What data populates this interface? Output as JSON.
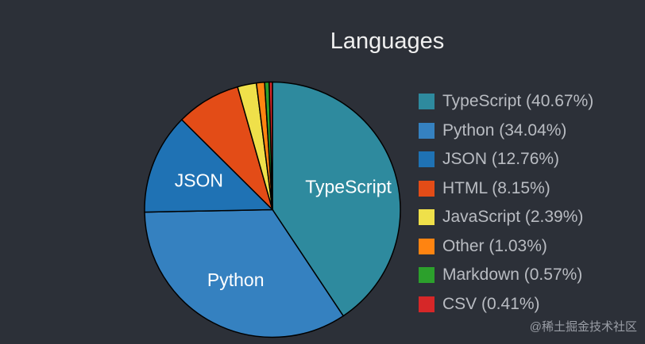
{
  "chart_data": {
    "type": "pie",
    "title": "Languages",
    "start": "top",
    "direction": "clockwise",
    "legend_position": "right",
    "slices": [
      {
        "label": "TypeScript",
        "value": 40.67,
        "legend": "TypeScript (40.67%)",
        "color": "#2e8a9e",
        "show_label": true
      },
      {
        "label": "Python",
        "value": 34.04,
        "legend": "Python (34.04%)",
        "color": "#3581c0",
        "show_label": true
      },
      {
        "label": "JSON",
        "value": 12.76,
        "legend": "JSON (12.76%)",
        "color": "#1f72b4",
        "show_label": true
      },
      {
        "label": "HTML",
        "value": 8.15,
        "legend": "HTML (8.15%)",
        "color": "#e34c17",
        "show_label": false
      },
      {
        "label": "JavaScript",
        "value": 2.39,
        "legend": "JavaScript (2.39%)",
        "color": "#efe04a",
        "show_label": false
      },
      {
        "label": "Other",
        "value": 1.03,
        "legend": "Other (1.03%)",
        "color": "#ff8411",
        "show_label": false
      },
      {
        "label": "Markdown",
        "value": 0.57,
        "legend": "Markdown (0.57%)",
        "color": "#2ca02c",
        "show_label": false
      },
      {
        "label": "CSV",
        "value": 0.41,
        "legend": "CSV (0.41%)",
        "color": "#d62728",
        "show_label": false
      }
    ]
  },
  "watermark": "@稀土掘金技术社区"
}
